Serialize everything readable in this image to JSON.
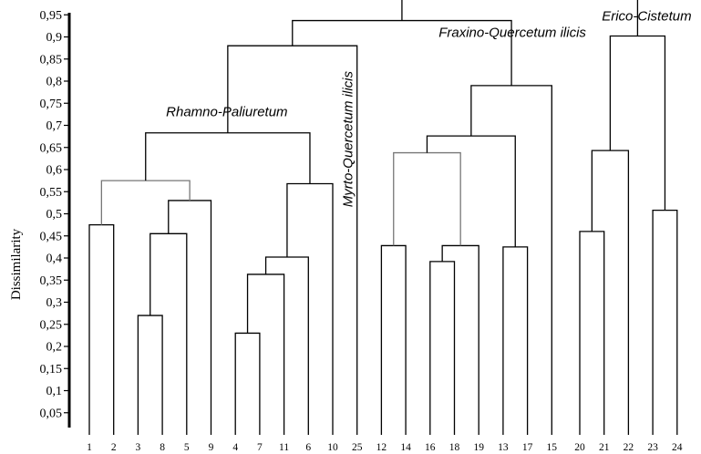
{
  "chart_data": {
    "type": "dendrogram",
    "title": "",
    "ylabel": "Dissimilarity",
    "xlabel": "",
    "ylim": [
      0,
      1.0
    ],
    "yticks": [
      "0,05",
      "0,1",
      "0,15",
      "0,2",
      "0,25",
      "0,3",
      "0,35",
      "0,4",
      "0,45",
      "0,5",
      "0,55",
      "0,6",
      "0,65",
      "0,7",
      "0,75",
      "0,8",
      "0,85",
      "0,9",
      "0,95"
    ],
    "leaves": [
      "1",
      "2",
      "3",
      "8",
      "5",
      "9",
      "4",
      "7",
      "11",
      "6",
      "10",
      "25",
      "12",
      "14",
      "16",
      "18",
      "19",
      "13",
      "17",
      "15",
      "20",
      "21",
      "22",
      "23",
      "24"
    ],
    "merges": [
      {
        "id": "m1",
        "left": "L:1",
        "right": "L:2",
        "height": 0.475
      },
      {
        "id": "m2",
        "left": "L:3",
        "right": "L:8",
        "height": 0.27
      },
      {
        "id": "m3",
        "left": "m2",
        "right": "L:5",
        "height": 0.455
      },
      {
        "id": "m4",
        "left": "m3",
        "right": "L:9",
        "height": 0.53
      },
      {
        "id": "m5",
        "left": "m1",
        "right": "m4",
        "height": 0.575,
        "style": "gray"
      },
      {
        "id": "m6",
        "left": "L:4",
        "right": "L:7",
        "height": 0.23
      },
      {
        "id": "m7",
        "left": "m6",
        "right": "L:11",
        "height": 0.363
      },
      {
        "id": "m8",
        "left": "m7",
        "right": "L:6",
        "height": 0.402
      },
      {
        "id": "m9",
        "left": "m8",
        "right": "L:10",
        "height": 0.568
      },
      {
        "id": "m10",
        "left": "m5",
        "right": "m9",
        "height": 0.683
      },
      {
        "id": "m11",
        "left": "m10",
        "right": "L:25",
        "height": 0.88
      },
      {
        "id": "m12",
        "left": "L:12",
        "right": "L:14",
        "height": 0.428
      },
      {
        "id": "m13",
        "left": "L:16",
        "right": "L:18",
        "height": 0.392
      },
      {
        "id": "m14",
        "left": "m13",
        "right": "L:19",
        "height": 0.428
      },
      {
        "id": "m15",
        "left": "m12",
        "right": "m14",
        "height": 0.638,
        "style": "gray"
      },
      {
        "id": "m16",
        "left": "L:13",
        "right": "L:17",
        "height": 0.425
      },
      {
        "id": "m17",
        "left": "m15",
        "right": "m16",
        "height": 0.676
      },
      {
        "id": "m18",
        "left": "m17",
        "right": "L:15",
        "height": 0.79
      },
      {
        "id": "m19",
        "left": "m11",
        "right": "m18",
        "height": 0.937
      },
      {
        "id": "m20",
        "left": "L:20",
        "right": "L:21",
        "height": 0.46
      },
      {
        "id": "m21",
        "left": "m20",
        "right": "L:22",
        "height": 0.643
      },
      {
        "id": "m22",
        "left": "L:23",
        "right": "L:24",
        "height": 0.508
      },
      {
        "id": "m23",
        "left": "m21",
        "right": "m22",
        "height": 0.902
      },
      {
        "id": "m24",
        "left": "m19",
        "right": "m23",
        "height": 0.985
      }
    ],
    "annotations": [
      {
        "text": "Rhamno-Paliuretum",
        "near": "m10"
      },
      {
        "text": "Myrto-Quercetum ilicis",
        "near": "m11",
        "orientation": "vertical"
      },
      {
        "text": "Fraxino-Quercetum ilicis",
        "near": "m18"
      },
      {
        "text": "Erico-Cistetum",
        "near": "m23"
      }
    ],
    "grid": false,
    "legend": "none"
  }
}
